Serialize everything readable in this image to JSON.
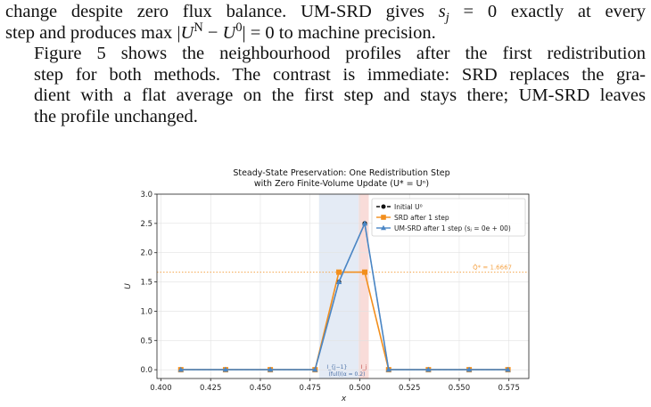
{
  "paper": {
    "p1_l1a": "change despite zero flux balance. UM-SRD gives ",
    "p1_l1b": "s",
    "p1_l1c": "j",
    "p1_l1d": " = 0 exactly at every",
    "p1_l2a": "step and produces max |",
    "p1_l2b": "U",
    "p1_l2c": "N",
    "p1_l2d": " − ",
    "p1_l2e": "U",
    "p1_l2f": "0",
    "p1_l2g": "| = 0 to machine precision.",
    "p2_l1": "Figure 5 shows the neighbourhood profiles after the first redistribution",
    "p2_l2": "step for both methods. The contrast is immediate: SRD replaces the gra-",
    "p2_l3": "dient with a flat average on the first step and stays there; UM-SRD leaves",
    "p2_l4": "the profile unchanged."
  },
  "chart_data": {
    "type": "line",
    "title_line1": "Steady-State Preservation: One Redistribution Step",
    "title_line2": "with Zero Finite-Volume Update (U* = Uⁿ)",
    "xlabel": "x",
    "ylabel": "U",
    "xlim": [
      0.398,
      0.585
    ],
    "ylim": [
      -0.15,
      3.0
    ],
    "xticks": [
      "0.400",
      "0.425",
      "0.450",
      "0.475",
      "0.500",
      "0.525",
      "0.550",
      "0.575"
    ],
    "xtick_values": [
      0.4,
      0.425,
      0.45,
      0.475,
      0.5,
      0.525,
      0.55,
      0.575
    ],
    "yticks": [
      "0.0",
      "0.5",
      "1.0",
      "1.5",
      "2.0",
      "2.5",
      "3.0"
    ],
    "ytick_values": [
      0.0,
      0.5,
      1.0,
      1.5,
      2.0,
      2.5,
      3.0
    ],
    "shaded_regions": [
      {
        "x0": 0.4795,
        "x1": 0.4995,
        "color": "#dfe8f3"
      },
      {
        "x0": 0.4995,
        "x1": 0.5045,
        "color": "#f8d6d2"
      }
    ],
    "hline": {
      "y": 1.6667,
      "label": "Q̂* = 1.6667",
      "color": "#f5a54a"
    },
    "cell_labels": [
      {
        "x": 0.4885,
        "y": 0.0,
        "text": "I_{j−1}"
      },
      {
        "x": 0.502,
        "y": 0.0,
        "text": "I_j"
      },
      {
        "x": 0.491,
        "y": -0.1,
        "text": "(full)(α = 0.2)"
      }
    ],
    "x": [
      0.41,
      0.4325,
      0.455,
      0.4775,
      0.4895,
      0.5025,
      0.5145,
      0.5345,
      0.555,
      0.5745
    ],
    "series": [
      {
        "name": "Initial U⁰",
        "color": "#111111",
        "marker": "circle",
        "dash": "4 2",
        "values": [
          0,
          0,
          0,
          0,
          1.5,
          2.5,
          0,
          0,
          0,
          0
        ]
      },
      {
        "name": "SRD after 1 step",
        "color": "#f28e1c",
        "marker": "square",
        "dash": "",
        "values": [
          0,
          0,
          0,
          0,
          1.6667,
          1.6667,
          0,
          0,
          0,
          0
        ]
      },
      {
        "name": "UM-SRD after 1 step (sⱼ = 0e + 00)",
        "color": "#4a86c5",
        "marker": "triangle",
        "dash": "",
        "values": [
          0,
          0,
          0,
          0,
          1.5,
          2.5,
          0,
          0,
          0,
          0
        ]
      }
    ],
    "legend_placement": "top-right",
    "grid": true
  }
}
